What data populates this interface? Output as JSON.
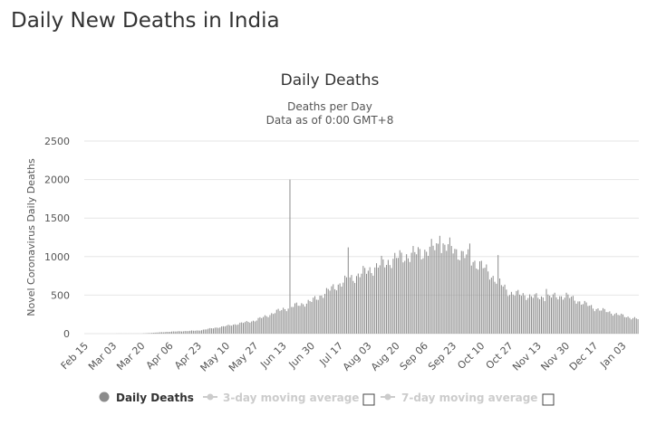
{
  "page": {
    "title": "Daily New Deaths in India"
  },
  "chart_data": {
    "type": "bar",
    "title": "Daily Deaths",
    "subtitle_lines": [
      "Deaths per Day",
      "Data as of 0:00 GMT+8"
    ],
    "xlabel": "",
    "ylabel": "Novel Coronavirus Daily Deaths",
    "ylim": [
      0,
      2500
    ],
    "yticks": [
      0,
      500,
      1000,
      1500,
      2000,
      2500
    ],
    "xticks": [
      "Feb 15",
      "Mar 03",
      "Mar 20",
      "Apr 06",
      "Apr 23",
      "May 10",
      "May 27",
      "Jun 13",
      "Jun 30",
      "Jul 17",
      "Aug 03",
      "Aug 20",
      "Sep 06",
      "Sep 23",
      "Oct 10",
      "Oct 27",
      "Nov 13",
      "Nov 30",
      "Dec 17",
      "Jan 03"
    ],
    "x_start": "2020-02-15",
    "x_end": "2021-01-12",
    "grid": true,
    "color": "#8c8c8c",
    "anchors": [
      [
        "2020-02-15",
        0
      ],
      [
        "2020-03-20",
        1
      ],
      [
        "2020-04-06",
        25
      ],
      [
        "2020-04-23",
        40
      ],
      [
        "2020-05-10",
        100
      ],
      [
        "2020-05-27",
        170
      ],
      [
        "2020-06-13",
        320
      ],
      [
        "2020-06-30",
        420
      ],
      [
        "2020-07-17",
        650
      ],
      [
        "2020-08-03",
        820
      ],
      [
        "2020-08-20",
        980
      ],
      [
        "2020-09-06",
        1070
      ],
      [
        "2020-09-16",
        1150
      ],
      [
        "2020-09-23",
        1100
      ],
      [
        "2020-10-10",
        880
      ],
      [
        "2020-10-27",
        530
      ],
      [
        "2020-11-13",
        470
      ],
      [
        "2020-11-30",
        490
      ],
      [
        "2020-12-17",
        330
      ],
      [
        "2021-01-03",
        230
      ],
      [
        "2021-01-12",
        190
      ]
    ],
    "spikes": [
      [
        "2020-06-17",
        2000
      ],
      [
        "2020-07-22",
        1120
      ],
      [
        "2020-08-11",
        1010
      ],
      [
        "2020-09-15",
        1270
      ],
      [
        "2020-10-03",
        1170
      ],
      [
        "2020-10-20",
        1020
      ],
      [
        "2020-11-18",
        580
      ]
    ],
    "legend": [
      {
        "label": "Daily Deaths",
        "active": true
      },
      {
        "label": "3-day moving average",
        "active": false
      },
      {
        "label": "7-day moving average",
        "active": false
      }
    ],
    "legend_position": "bottom"
  }
}
